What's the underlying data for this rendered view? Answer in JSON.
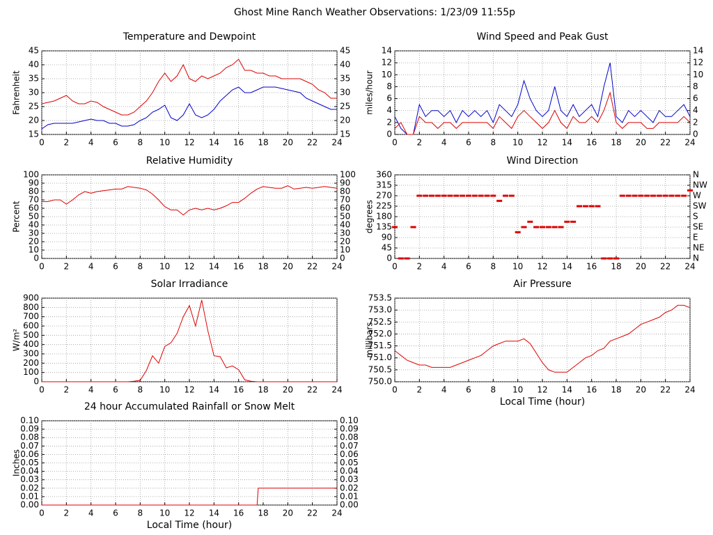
{
  "title": "Ghost Mine Ranch Weather Observations: 1/23/09 11:55p",
  "chart_data": [
    {
      "type": "line",
      "title": "Temperature and Dewpoint",
      "y_label": "Fahrenheit",
      "mirror_yticks": true,
      "grid": true,
      "xlim": [
        0,
        24
      ],
      "xticks": [
        0,
        2,
        4,
        6,
        8,
        10,
        12,
        14,
        16,
        18,
        20,
        22,
        24
      ],
      "ylim": [
        15,
        45
      ],
      "yticks": [
        15,
        20,
        25,
        30,
        35,
        40,
        45
      ],
      "x": [
        0,
        0.5,
        1,
        1.5,
        2,
        2.5,
        3,
        3.5,
        4,
        4.5,
        5,
        5.5,
        6,
        6.5,
        7,
        7.5,
        8,
        8.5,
        9,
        9.5,
        10,
        10.5,
        11,
        11.5,
        12,
        12.5,
        13,
        13.5,
        14,
        14.5,
        15,
        15.5,
        16,
        16.5,
        17,
        17.5,
        18,
        18.5,
        19,
        19.5,
        20,
        20.5,
        21,
        21.5,
        22,
        22.5,
        23,
        23.5,
        24
      ],
      "series": [
        {
          "color": "#dd0000",
          "values": [
            26,
            26.5,
            27,
            28,
            29,
            27,
            26,
            26,
            27,
            26.5,
            25,
            24,
            23,
            22,
            22,
            23,
            25,
            27,
            30,
            34,
            37,
            34,
            36,
            40,
            35,
            34,
            36,
            35,
            36,
            37,
            39,
            40,
            42,
            38,
            38,
            37,
            37,
            36,
            36,
            35,
            35,
            35,
            35,
            34,
            33,
            31,
            30,
            28,
            28
          ]
        },
        {
          "color": "#0000cc",
          "values": [
            17,
            18.5,
            19,
            19,
            19,
            19,
            19.5,
            20,
            20.5,
            20,
            20,
            19,
            19,
            18,
            18,
            18.5,
            20,
            21,
            23,
            24,
            25.5,
            21,
            20,
            22,
            26,
            22,
            21,
            22,
            24,
            27,
            29,
            31,
            32,
            30,
            30,
            31,
            32,
            32,
            32,
            31.5,
            31,
            30.5,
            30,
            28,
            27,
            26,
            25,
            24,
            24
          ]
        }
      ]
    },
    {
      "type": "line",
      "title": "Wind Speed and Peak Gust",
      "y_label": "miles/hour",
      "mirror_yticks": true,
      "grid": true,
      "xlim": [
        0,
        24
      ],
      "xticks": [
        0,
        2,
        4,
        6,
        8,
        10,
        12,
        14,
        16,
        18,
        20,
        22,
        24
      ],
      "ylim": [
        0,
        14
      ],
      "yticks": [
        0,
        2,
        4,
        6,
        8,
        10,
        12,
        14
      ],
      "x": [
        0,
        0.5,
        1,
        1.5,
        2,
        2.5,
        3,
        3.5,
        4,
        4.5,
        5,
        5.5,
        6,
        6.5,
        7,
        7.5,
        8,
        8.5,
        9,
        9.5,
        10,
        10.5,
        11,
        11.5,
        12,
        12.5,
        13,
        13.5,
        14,
        14.5,
        15,
        15.5,
        16,
        16.5,
        17,
        17.5,
        18,
        18.5,
        19,
        19.5,
        20,
        20.5,
        21,
        21.5,
        22,
        22.5,
        23,
        23.5,
        24
      ],
      "series": [
        {
          "color": "#0000cc",
          "values": [
            3,
            1,
            0,
            0,
            5,
            3,
            4,
            4,
            3,
            4,
            2,
            4,
            3,
            4,
            3,
            4,
            2,
            5,
            4,
            3,
            5,
            9,
            6,
            4,
            3,
            4,
            8,
            4,
            3,
            5,
            3,
            4,
            5,
            3,
            8,
            12,
            3,
            2,
            4,
            3,
            4,
            3,
            2,
            4,
            3,
            3,
            4,
            5,
            3
          ]
        },
        {
          "color": "#dd0000",
          "values": [
            1,
            2,
            0,
            0,
            3,
            2,
            2,
            1,
            2,
            2,
            1,
            2,
            2,
            2,
            2,
            2,
            1,
            3,
            2,
            1,
            3,
            4,
            3,
            2,
            1,
            2,
            4,
            2,
            1,
            3,
            2,
            2,
            3,
            2,
            4,
            7,
            2,
            1,
            2,
            2,
            2,
            1,
            1,
            2,
            2,
            2,
            2,
            3,
            2
          ]
        }
      ]
    },
    {
      "type": "line",
      "title": "Relative Humidity",
      "y_label": "Percent",
      "mirror_yticks": true,
      "grid": true,
      "xlim": [
        0,
        24
      ],
      "xticks": [
        0,
        2,
        4,
        6,
        8,
        10,
        12,
        14,
        16,
        18,
        20,
        22,
        24
      ],
      "ylim": [
        0,
        100
      ],
      "yticks": [
        0,
        10,
        20,
        30,
        40,
        50,
        60,
        70,
        80,
        90,
        100
      ],
      "x": [
        0,
        0.5,
        1,
        1.5,
        2,
        2.5,
        3,
        3.5,
        4,
        4.5,
        5,
        5.5,
        6,
        6.5,
        7,
        7.5,
        8,
        8.5,
        9,
        9.5,
        10,
        10.5,
        11,
        11.5,
        12,
        12.5,
        13,
        13.5,
        14,
        14.5,
        15,
        15.5,
        16,
        16.5,
        17,
        17.5,
        18,
        18.5,
        19,
        19.5,
        20,
        20.5,
        21,
        21.5,
        22,
        22.5,
        23,
        23.5,
        24
      ],
      "series": [
        {
          "color": "#dd0000",
          "values": [
            68,
            68,
            70,
            70,
            65,
            70,
            76,
            80,
            78,
            80,
            81,
            82,
            83,
            83,
            86,
            85,
            84,
            82,
            77,
            70,
            62,
            58,
            58,
            52,
            58,
            60,
            58,
            60,
            58,
            60,
            63,
            67,
            67,
            72,
            78,
            83,
            86,
            85,
            84,
            84,
            87,
            83,
            84,
            85,
            84,
            85,
            86,
            85,
            84
          ]
        }
      ]
    },
    {
      "type": "scatter",
      "title": "Wind Direction",
      "y_label": "degrees",
      "grid": true,
      "xlim": [
        0,
        24
      ],
      "xticks": [
        0,
        2,
        4,
        6,
        8,
        10,
        12,
        14,
        16,
        18,
        20,
        22,
        24
      ],
      "ylim": [
        0,
        360
      ],
      "yticks": [
        0,
        45,
        90,
        135,
        180,
        225,
        270,
        315,
        360
      ],
      "y2lim": [
        0,
        360
      ],
      "y2ticks": [
        {
          "value": 0,
          "label": "N"
        },
        {
          "value": 45,
          "label": "NE"
        },
        {
          "value": 90,
          "label": "E"
        },
        {
          "value": 135,
          "label": "SE"
        },
        {
          "value": 180,
          "label": "S"
        },
        {
          "value": 225,
          "label": "SW"
        },
        {
          "value": 270,
          "label": "W"
        },
        {
          "value": 315,
          "label": "NW"
        },
        {
          "value": 360,
          "label": "N"
        }
      ],
      "x": [
        0,
        0.5,
        1,
        1.5,
        2,
        2.5,
        3,
        3.5,
        4,
        4.5,
        5,
        5.5,
        6,
        6.5,
        7,
        7.5,
        8,
        8.5,
        9,
        9.5,
        10,
        10.5,
        11,
        11.5,
        12,
        12.5,
        13,
        13.5,
        14,
        14.5,
        15,
        15.5,
        16,
        16.5,
        17,
        17.5,
        18,
        18.5,
        19,
        19.5,
        20,
        20.5,
        21,
        21.5,
        22,
        22.5,
        23,
        23.5,
        24
      ],
      "series": [
        {
          "color": "#dd0000",
          "values": [
            135,
            0,
            0,
            135,
            270,
            270,
            270,
            270,
            270,
            270,
            270,
            270,
            270,
            270,
            270,
            270,
            270,
            248,
            270,
            270,
            113,
            135,
            158,
            135,
            135,
            135,
            135,
            135,
            158,
            158,
            225,
            225,
            225,
            225,
            0,
            0,
            0,
            270,
            270,
            270,
            270,
            270,
            270,
            270,
            270,
            270,
            270,
            270,
            293
          ]
        }
      ]
    },
    {
      "type": "line",
      "title": "Solar Irradiance",
      "y_label": "W/m²",
      "grid": true,
      "xlim": [
        0,
        24
      ],
      "xticks": [
        0,
        2,
        4,
        6,
        8,
        10,
        12,
        14,
        16,
        18,
        20,
        22,
        24
      ],
      "ylim": [
        0,
        900
      ],
      "yticks": [
        0,
        100,
        200,
        300,
        400,
        500,
        600,
        700,
        800,
        900
      ],
      "x": [
        0,
        0.5,
        1,
        1.5,
        2,
        2.5,
        3,
        3.5,
        4,
        4.5,
        5,
        5.5,
        6,
        6.5,
        7,
        7.5,
        8,
        8.5,
        9,
        9.5,
        10,
        10.5,
        11,
        11.5,
        12,
        12.5,
        13,
        13.5,
        14,
        14.5,
        15,
        15.5,
        16,
        16.5,
        17,
        17.5,
        18,
        18.5,
        19,
        19.5,
        20,
        20.5,
        21,
        21.5,
        22,
        22.5,
        23,
        23.5,
        24
      ],
      "series": [
        {
          "color": "#dd0000",
          "values": [
            0,
            0,
            0,
            0,
            0,
            0,
            0,
            0,
            0,
            0,
            0,
            0,
            0,
            0,
            0,
            5,
            15,
            120,
            280,
            200,
            380,
            420,
            520,
            700,
            820,
            600,
            880,
            550,
            280,
            270,
            150,
            170,
            130,
            20,
            5,
            0,
            0,
            0,
            0,
            0,
            0,
            0,
            0,
            0,
            0,
            0,
            0,
            0,
            0
          ]
        }
      ]
    },
    {
      "type": "line",
      "title": "Air Pressure",
      "y_label": "millibars",
      "x_label": "Local Time (hour)",
      "grid": true,
      "xlim": [
        0,
        24
      ],
      "xticks": [
        0,
        2,
        4,
        6,
        8,
        10,
        12,
        14,
        16,
        18,
        20,
        22,
        24
      ],
      "ylim": [
        750,
        753.5
      ],
      "yticks": [
        {
          "value": 750,
          "label": "750.0"
        },
        750.5,
        {
          "value": 751,
          "label": "751.0"
        },
        751.5,
        {
          "value": 752,
          "label": "752.0"
        },
        752.5,
        {
          "value": 753,
          "label": "753.0"
        },
        753.5
      ],
      "x": [
        0,
        0.5,
        1,
        1.5,
        2,
        2.5,
        3,
        3.5,
        4,
        4.5,
        5,
        5.5,
        6,
        6.5,
        7,
        7.5,
        8,
        8.5,
        9,
        9.5,
        10,
        10.5,
        11,
        11.5,
        12,
        12.5,
        13,
        13.5,
        14,
        14.5,
        15,
        15.5,
        16,
        16.5,
        17,
        17.5,
        18,
        18.5,
        19,
        19.5,
        20,
        20.5,
        21,
        21.5,
        22,
        22.5,
        23,
        23.5,
        24
      ],
      "series": [
        {
          "color": "#dd0000",
          "values": [
            751.3,
            751.1,
            750.9,
            750.8,
            750.7,
            750.7,
            750.6,
            750.6,
            750.6,
            750.6,
            750.7,
            750.8,
            750.9,
            751.0,
            751.1,
            751.3,
            751.5,
            751.6,
            751.7,
            751.7,
            751.7,
            751.8,
            751.6,
            751.2,
            750.8,
            750.5,
            750.4,
            750.4,
            750.4,
            750.6,
            750.8,
            751.0,
            751.1,
            751.3,
            751.4,
            751.7,
            751.8,
            751.9,
            752.0,
            752.2,
            752.4,
            752.5,
            752.6,
            752.7,
            752.9,
            753.0,
            753.2,
            753.2,
            753.1
          ]
        }
      ]
    },
    {
      "type": "line",
      "title": "24 hour Accumulated Rainfall or Snow Melt",
      "y_label": "Inches",
      "x_label": "Local Time (hour)",
      "mirror_yticks": true,
      "grid": true,
      "xlim": [
        0,
        24
      ],
      "xticks": [
        0,
        2,
        4,
        6,
        8,
        10,
        12,
        14,
        16,
        18,
        20,
        22,
        24
      ],
      "ylim": [
        0,
        0.1
      ],
      "yticks": [
        {
          "value": 0,
          "label": "0.00"
        },
        0.01,
        0.02,
        0.03,
        0.04,
        0.05,
        0.06,
        0.07,
        0.08,
        0.09,
        {
          "value": 0.1,
          "label": "0.10"
        }
      ],
      "x": [
        0,
        17.5,
        17.6,
        24
      ],
      "series": [
        {
          "color": "#dd0000",
          "values": [
            0,
            0,
            0.02,
            0.02
          ]
        }
      ]
    }
  ]
}
